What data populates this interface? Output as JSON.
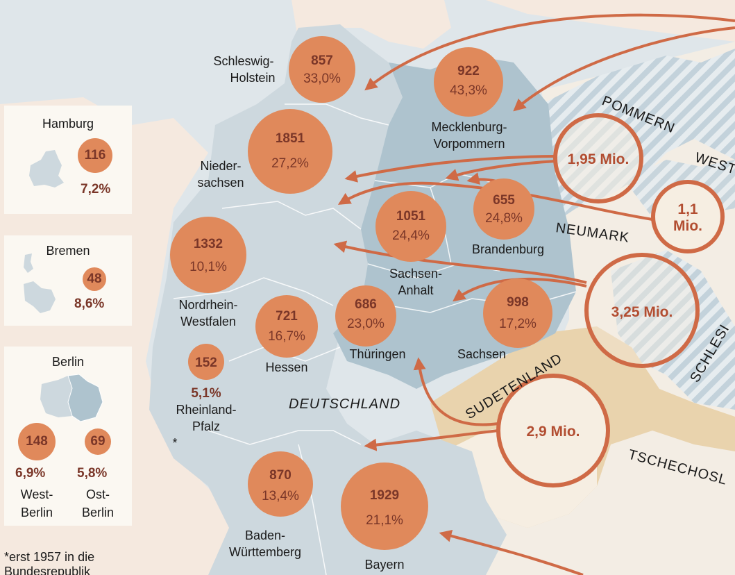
{
  "states": [
    {
      "id": "schleswig-holstein",
      "name": "Schleswig-Holstein",
      "label_lines": [
        "Schleswig-",
        "Holstein"
      ],
      "count": "857",
      "pct": "33,0%"
    },
    {
      "id": "mecklenburg-vorpommern",
      "name": "Mecklenburg-Vorpommern",
      "label_lines": [
        "Mecklenburg-",
        "Vorpommern"
      ],
      "count": "922",
      "pct": "43,3%"
    },
    {
      "id": "niedersachsen",
      "name": "Niedersachsen",
      "label_lines": [
        "Nieder-",
        "sachsen"
      ],
      "count": "1851",
      "pct": "27,2%"
    },
    {
      "id": "sachsen-anhalt",
      "name": "Sachsen-Anhalt",
      "label_lines": [
        "Sachsen-",
        "Anhalt"
      ],
      "count": "1051",
      "pct": "24,4%"
    },
    {
      "id": "brandenburg",
      "name": "Brandenburg",
      "label_lines": [
        "Brandenburg"
      ],
      "count": "655",
      "pct": "24,8%"
    },
    {
      "id": "nordrhein-westfalen",
      "name": "Nordrhein-Westfalen",
      "label_lines": [
        "Nordrhein-",
        "Westfalen"
      ],
      "count": "1332",
      "pct": "10,1%"
    },
    {
      "id": "hessen",
      "name": "Hessen",
      "label_lines": [
        "Hessen"
      ],
      "count": "721",
      "pct": "16,7%"
    },
    {
      "id": "thueringen",
      "name": "Thüringen",
      "label_lines": [
        "Thüringen"
      ],
      "count": "686",
      "pct": "23,0%"
    },
    {
      "id": "sachsen",
      "name": "Sachsen",
      "label_lines": [
        "Sachsen"
      ],
      "count": "998",
      "pct": "17,2%"
    },
    {
      "id": "rheinland-pfalz",
      "name": "Rheinland-Pfalz",
      "label_lines": [
        "Rheinland-",
        "Pfalz"
      ],
      "count": "152",
      "pct": "5,1%",
      "marker": "*"
    },
    {
      "id": "baden-wuerttemberg",
      "name": "Baden-Württemberg",
      "label_lines": [
        "Baden-",
        "Württemberg"
      ],
      "count": "870",
      "pct": "13,4%"
    },
    {
      "id": "bayern",
      "name": "Bayern",
      "label_lines": [
        "Bayern"
      ],
      "count": "1929",
      "pct": "21,1%"
    }
  ],
  "flows": [
    {
      "id": "pommern-flow",
      "label": "1,95 Mio."
    },
    {
      "id": "neumark-flow",
      "label_lines": [
        "1,1",
        "Mio."
      ]
    },
    {
      "id": "schlesien-flow",
      "label": "3,25 Mio."
    },
    {
      "id": "sudetenland-flow",
      "label": "2,9 Mio."
    }
  ],
  "region_labels": {
    "pommern": "POMMERN",
    "neumark": "NEUMARK",
    "west": "WEST",
    "schlesien": "SCHLESI",
    "sudetenland": "SUDETENLAND",
    "tschechoslowakei": "TSCHECHOSL",
    "deutschland": "DEUTSCHLAND"
  },
  "insets": {
    "hamburg": {
      "title": "Hamburg",
      "count": "116",
      "pct": "7,2%"
    },
    "bremen": {
      "title": "Bremen",
      "count": "48",
      "pct": "8,6%"
    },
    "berlin": {
      "title": "Berlin",
      "west": {
        "count": "148",
        "pct": "6,9%",
        "label_lines": [
          "West-",
          "Berlin"
        ]
      },
      "ost": {
        "count": "69",
        "pct": "5,8%",
        "label_lines": [
          "Ost-",
          "Berlin"
        ]
      }
    }
  },
  "footnote": {
    "lines": [
      "*erst 1957 in die",
      "Bundesrepublik"
    ]
  },
  "colors": {
    "background": "#f6eee2",
    "sea": "#dfe6ea",
    "germany": "#cdd8de",
    "soviet_zone": "#aec3ce",
    "lost_territories": "#f3ede4",
    "sudetenland": "#e9d3ad",
    "circle_fill": "#e0895b",
    "circle_text": "#7a3628",
    "flow_arrow": "#cf6a46"
  }
}
